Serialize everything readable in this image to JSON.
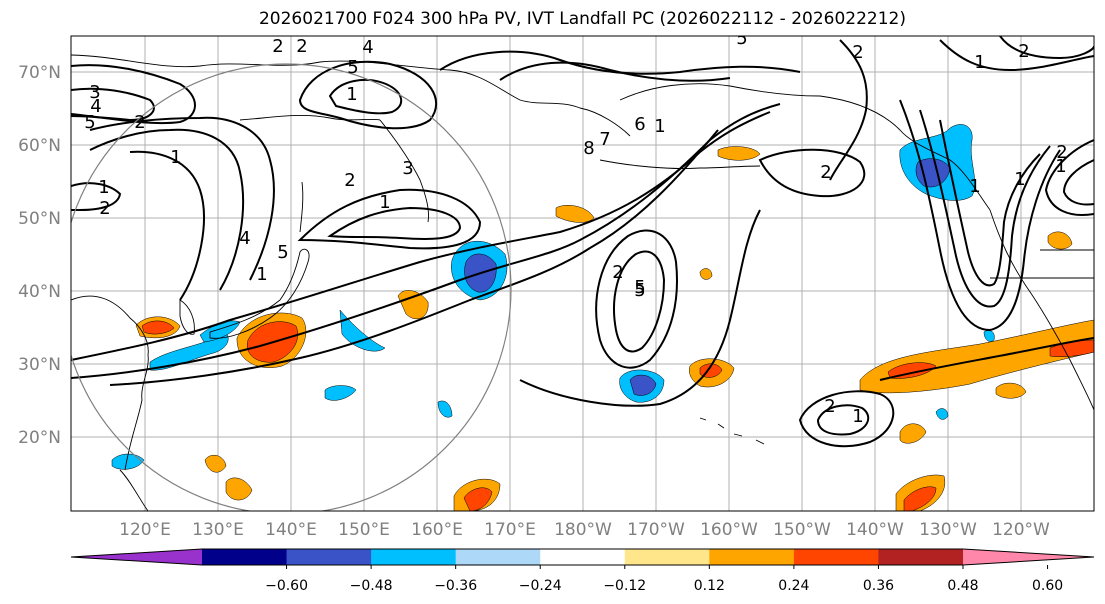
{
  "title": "2026021700 F024 300 hPa PV, IVT Landfall PC (2026022112 - 2026022212)",
  "colors": {
    "grid": "#b0b0b0",
    "coast": "#000000",
    "contour": "#000000",
    "circle": "#808080",
    "axis_label": "#808080",
    "neg_strong": "#3a54c8",
    "neg_mid": "#00bfff",
    "neg_light": "#add8f8",
    "pos_light": "#ffe68a",
    "pos_mid": "#ffa500",
    "pos_strong": "#ff4500",
    "pos_dark": "#b22222"
  },
  "map": {
    "lat_labels": [
      "70°N",
      "60°N",
      "50°N",
      "40°N",
      "30°N",
      "20°N"
    ],
    "lon_labels": [
      "120°E",
      "130°E",
      "140°E",
      "150°E",
      "160°E",
      "170°E",
      "180°W",
      "170°W",
      "160°W",
      "150°W",
      "140°W",
      "130°W",
      "120°W"
    ],
    "contour_labels": [
      "1",
      "2",
      "3",
      "4",
      "5",
      "2",
      "1",
      "2",
      "5",
      "4",
      "1",
      "2",
      "1",
      "2",
      "3",
      "4",
      "5",
      "1",
      "2",
      "5",
      "8",
      "7",
      "6",
      "1",
      "2",
      "5",
      "2",
      "1",
      "1",
      "1",
      "2",
      "1",
      "2",
      "5",
      "2",
      "1"
    ]
  },
  "colorbar": {
    "colors": [
      "#9932cc",
      "#00008b",
      "#3a54c8",
      "#00bfff",
      "#add8f8",
      "#ffffff",
      "#ffe68a",
      "#ffa500",
      "#ff4500",
      "#b22222",
      "#ff88aa"
    ],
    "tick_labels": [
      "−0.60",
      "−0.48",
      "−0.36",
      "−0.24",
      "−0.12",
      "0.12",
      "0.24",
      "0.36",
      "0.48",
      "0.60"
    ]
  }
}
